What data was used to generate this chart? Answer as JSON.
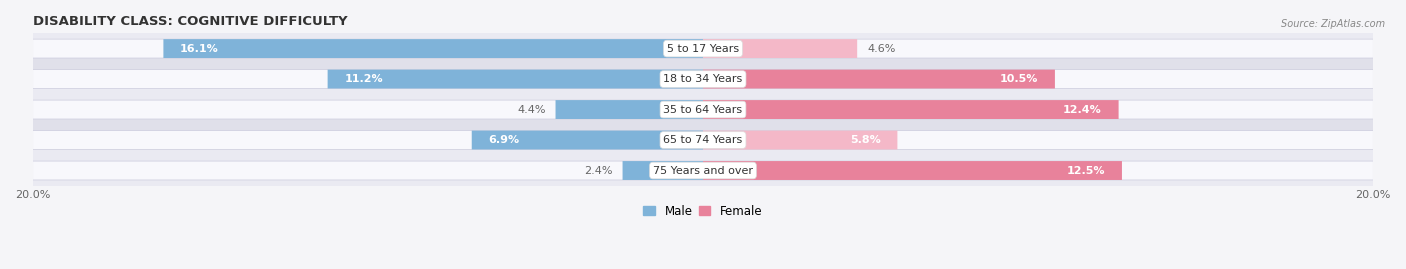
{
  "title": "DISABILITY CLASS: COGNITIVE DIFFICULTY",
  "source": "Source: ZipAtlas.com",
  "categories": [
    "5 to 17 Years",
    "18 to 34 Years",
    "35 to 64 Years",
    "65 to 74 Years",
    "75 Years and over"
  ],
  "male_values": [
    16.1,
    11.2,
    4.4,
    6.9,
    2.4
  ],
  "female_values": [
    4.6,
    10.5,
    12.4,
    5.8,
    12.5
  ],
  "male_color": "#7fb3d9",
  "female_color": "#e8829b",
  "female_color_light": "#f4b8c8",
  "male_label_color_inside": "#ffffff",
  "male_label_color_outside": "#666666",
  "female_label_color_inside": "#ffffff",
  "female_label_color_outside": "#666666",
  "axis_max": 20.0,
  "bar_height": 0.62,
  "row_bg_color_light": "#f0f0f5",
  "row_bg_color_dark": "#e4e4ec",
  "pill_bg_color": "#ebebf2",
  "background_color": "#f5f5f8",
  "title_fontsize": 9.5,
  "label_fontsize": 8,
  "tick_fontsize": 8,
  "legend_fontsize": 8.5,
  "category_fontsize": 8
}
